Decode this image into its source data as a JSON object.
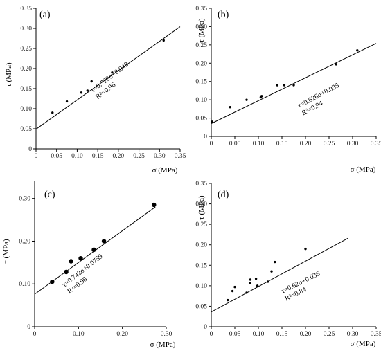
{
  "chart_data": [
    {
      "type": "scatter",
      "panel_label": "(a)",
      "xlabel": "σ (MPa)",
      "ylabel": "τ (MPa)",
      "xlim": [
        0,
        0.35
      ],
      "ylim": [
        0,
        0.35
      ],
      "x_ticks": [
        "0",
        "0.05",
        "0.10",
        "0.15",
        "0.20",
        "0.25",
        "0.30",
        "0.35"
      ],
      "y_ticks": [
        "0",
        "0.05",
        "0.10",
        "0.15",
        "0.20",
        "0.25",
        "0.30",
        "0.35"
      ],
      "points": [
        {
          "x": 0.04,
          "y": 0.09
        },
        {
          "x": 0.075,
          "y": 0.118
        },
        {
          "x": 0.11,
          "y": 0.14
        },
        {
          "x": 0.125,
          "y": 0.145
        },
        {
          "x": 0.135,
          "y": 0.168
        },
        {
          "x": 0.185,
          "y": 0.19
        },
        {
          "x": 0.31,
          "y": 0.27
        }
      ],
      "marker_size": "small",
      "fit": {
        "slope": 0.729,
        "intercept": 0.049,
        "x_range": [
          0,
          0.35
        ]
      },
      "equation": "τ=0.729σ+0.049",
      "r_squared": "R²=0.96"
    },
    {
      "type": "scatter",
      "panel_label": "(b)",
      "xlabel": "σ (MPa)",
      "ylabel": "τ (MPa)",
      "xlim": [
        0,
        0.35
      ],
      "ylim": [
        0,
        0.35
      ],
      "x_ticks": [
        "0",
        "0.05",
        "0.10",
        "0.15",
        "0.20",
        "0.25",
        "0.30",
        "0.35"
      ],
      "y_ticks": [
        "0",
        "0.05",
        "0.10",
        "0.15",
        "0.20",
        "0.25",
        "0.30",
        "0.35"
      ],
      "points": [
        {
          "x": 0.002,
          "y": 0.04
        },
        {
          "x": 0.04,
          "y": 0.08
        },
        {
          "x": 0.075,
          "y": 0.1
        },
        {
          "x": 0.105,
          "y": 0.107
        },
        {
          "x": 0.107,
          "y": 0.11
        },
        {
          "x": 0.14,
          "y": 0.14
        },
        {
          "x": 0.155,
          "y": 0.14
        },
        {
          "x": 0.175,
          "y": 0.14
        },
        {
          "x": 0.265,
          "y": 0.197
        },
        {
          "x": 0.31,
          "y": 0.235
        }
      ],
      "marker_size": "small",
      "fit": {
        "slope": 0.626,
        "intercept": 0.035,
        "x_range": [
          0,
          0.35
        ]
      },
      "equation": "τ=0.626σ+0.035",
      "r_squared": "R²=0.94"
    },
    {
      "type": "scatter",
      "panel_label": "(c)",
      "xlabel": "σ (MPa)",
      "ylabel": "τ (MPa)",
      "xlim": [
        0,
        0.3
      ],
      "ylim": [
        0,
        0.34
      ],
      "x_ticks": [
        "0",
        "0.10",
        "0.20",
        "0.30"
      ],
      "y_ticks": [
        "0",
        "0.10",
        "0.20",
        "0.30"
      ],
      "points": [
        {
          "x": 0.04,
          "y": 0.105
        },
        {
          "x": 0.072,
          "y": 0.128
        },
        {
          "x": 0.083,
          "y": 0.153
        },
        {
          "x": 0.105,
          "y": 0.16
        },
        {
          "x": 0.135,
          "y": 0.18
        },
        {
          "x": 0.158,
          "y": 0.2
        },
        {
          "x": 0.272,
          "y": 0.285
        }
      ],
      "marker_size": "large",
      "fit": {
        "slope": 0.742,
        "intercept": 0.0759,
        "x_range": [
          0,
          0.275
        ]
      },
      "equation": "τ=0.742σ+0.0759",
      "r_squared": "R²=0.98"
    },
    {
      "type": "scatter",
      "panel_label": "(d)",
      "xlabel": "σ (MPa)",
      "ylabel": "τ (MPa)",
      "xlim": [
        0,
        0.35
      ],
      "ylim": [
        0,
        0.35
      ],
      "x_ticks": [
        "0",
        "0.05",
        "0.10",
        "0.15",
        "0.20",
        "0.25",
        "0.30",
        "0.35"
      ],
      "y_ticks": [
        "0",
        "0.05",
        "0.10",
        "0.15",
        "0.20",
        "0.25",
        "0.30",
        "0.35"
      ],
      "points": [
        {
          "x": 0.035,
          "y": 0.065
        },
        {
          "x": 0.045,
          "y": 0.087
        },
        {
          "x": 0.05,
          "y": 0.097
        },
        {
          "x": 0.075,
          "y": 0.083
        },
        {
          "x": 0.082,
          "y": 0.107
        },
        {
          "x": 0.083,
          "y": 0.115
        },
        {
          "x": 0.095,
          "y": 0.117
        },
        {
          "x": 0.098,
          "y": 0.1
        },
        {
          "x": 0.12,
          "y": 0.11
        },
        {
          "x": 0.128,
          "y": 0.135
        },
        {
          "x": 0.135,
          "y": 0.158
        },
        {
          "x": 0.2,
          "y": 0.19
        }
      ],
      "marker_size": "small",
      "fit": {
        "slope": 0.62,
        "intercept": 0.036,
        "x_range": [
          0,
          0.29
        ]
      },
      "equation": "τ=0.62σ+0.036",
      "r_squared": "R²=0.84"
    }
  ]
}
